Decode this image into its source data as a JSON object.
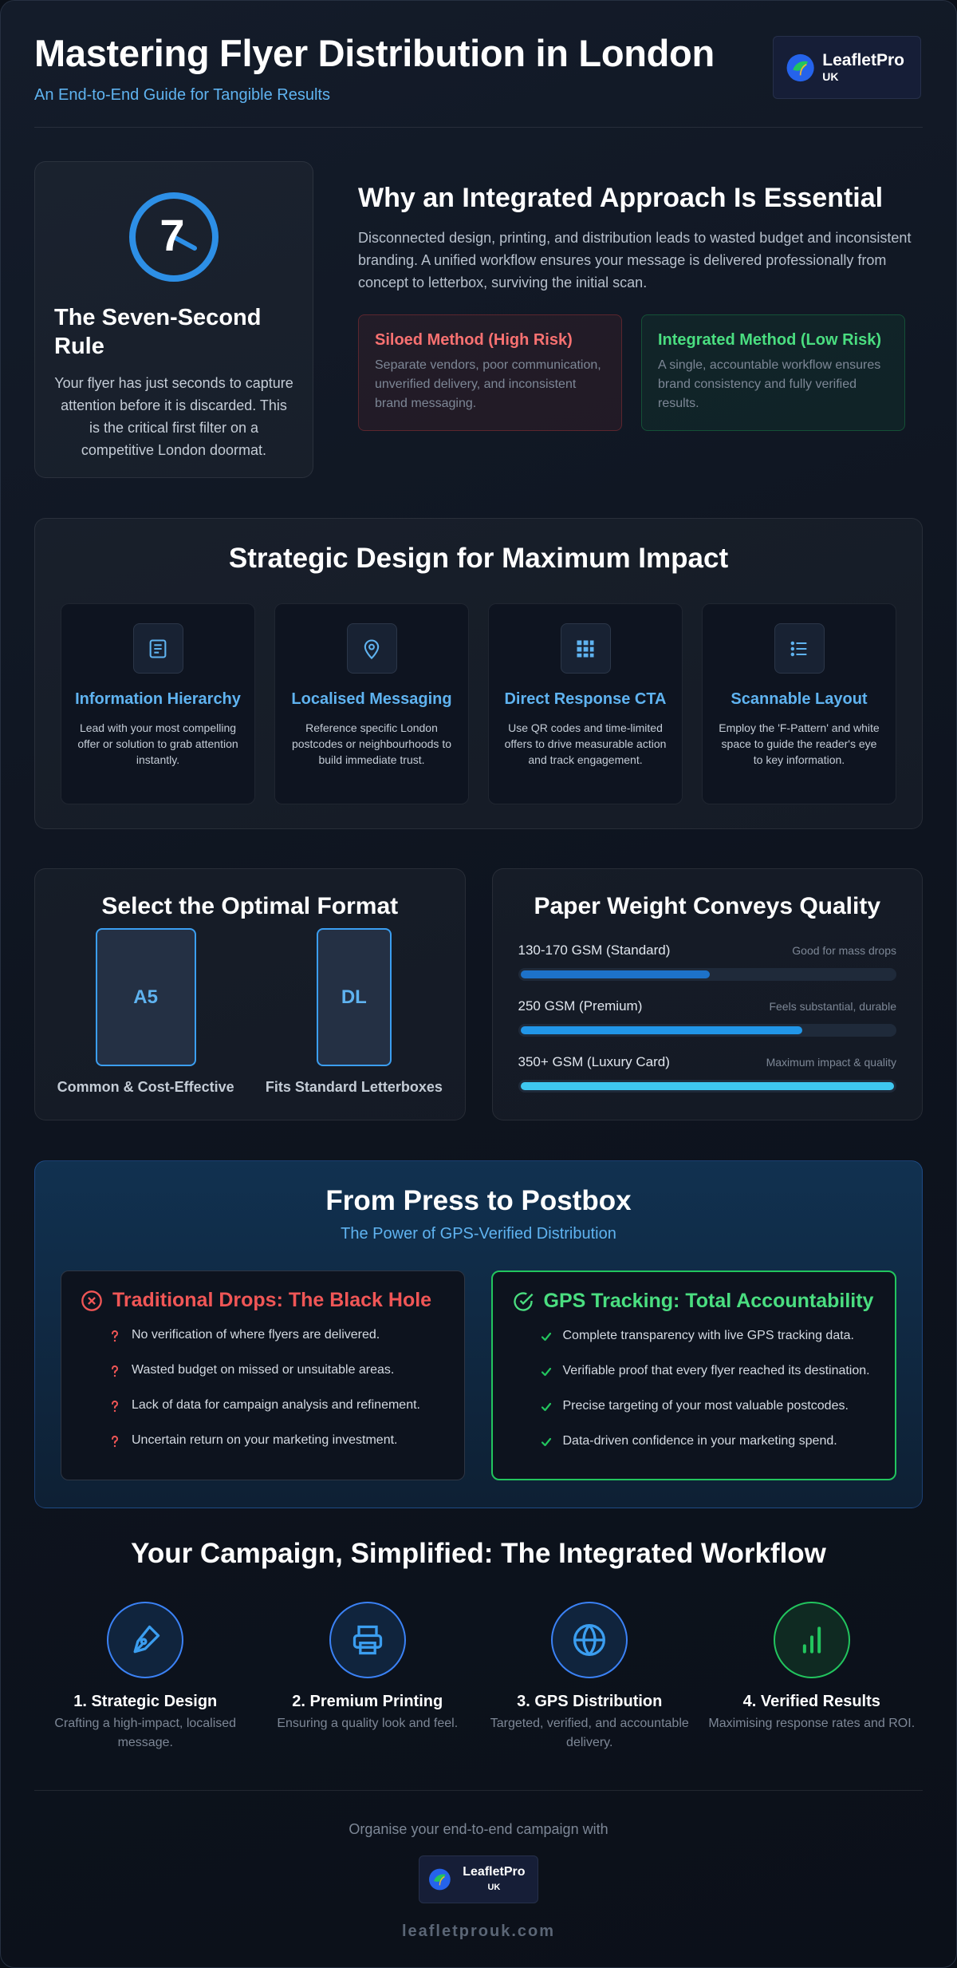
{
  "header": {
    "title": "Mastering Flyer Distribution in London",
    "subtitle": "An End-to-End Guide for Tangible Results",
    "logo": {
      "name": "LeafletPro",
      "suffix": "UK"
    }
  },
  "seven_second": {
    "number": "7",
    "title": "The Seven-Second Rule",
    "text": "Your flyer has just seconds to capture attention before it is discarded. This is the critical first filter on a competitive London doormat."
  },
  "integrated": {
    "title": "Why an Integrated Approach Is Essential",
    "text": "Disconnected design, printing, and distribution leads to wasted budget and inconsistent branding. A unified workflow ensures your message is delivered professionally from concept to letterbox, surviving the initial scan.",
    "siloed": {
      "title": "Siloed Method (High Risk)",
      "text": "Separate vendors, poor communication, unverified delivery, and inconsistent brand messaging."
    },
    "unified": {
      "title": "Integrated Method (Low Risk)",
      "text": "A single, accountable workflow ensures brand consistency and fully verified results."
    }
  },
  "design": {
    "title": "Strategic Design for Maximum Impact",
    "cards": [
      {
        "title": "Information Hierarchy",
        "text": "Lead with your most compelling offer or solution to grab attention instantly."
      },
      {
        "title": "Localised Messaging",
        "text": "Reference specific London postcodes or neighbourhoods to build immediate trust."
      },
      {
        "title": "Direct Response CTA",
        "text": "Use QR codes and time-limited offers to drive measurable action and track engagement."
      },
      {
        "title": "Scannable Layout",
        "text": "Employ the 'F-Pattern' and white space to guide the reader's eye to key information."
      }
    ]
  },
  "format": {
    "title": "Select the Optimal Format",
    "items": [
      {
        "label": "A5",
        "caption": "Common & Cost-Effective"
      },
      {
        "label": "DL",
        "caption": "Fits Standard Letterboxes"
      }
    ]
  },
  "paper": {
    "title": "Paper Weight Conveys Quality",
    "rows": [
      {
        "label": "130-170 GSM (Standard)",
        "note": "Good for mass drops"
      },
      {
        "label": "250 GSM (Premium)",
        "note": "Feels substantial, durable"
      },
      {
        "label": "350+ GSM (Luxury Card)",
        "note": "Maximum impact & quality"
      }
    ]
  },
  "press": {
    "title": "From Press to Postbox",
    "subtitle": "The Power of GPS-Verified Distribution",
    "traditional": {
      "title": "Traditional Drops: The Black Hole",
      "items": [
        "No verification of where flyers are delivered.",
        "Wasted budget on missed or unsuitable areas.",
        "Lack of data for campaign analysis and refinement.",
        "Uncertain return on your marketing investment."
      ]
    },
    "gps": {
      "title": "GPS Tracking: Total Accountability",
      "items": [
        "Complete transparency with live GPS tracking data.",
        "Verifiable proof that every flyer reached its destination.",
        "Precise targeting of your most valuable postcodes.",
        "Data-driven confidence in your marketing spend."
      ]
    }
  },
  "workflow": {
    "title": "Your Campaign, Simplified: The Integrated Workflow",
    "steps": [
      {
        "title": "1. Strategic Design",
        "text": "Crafting a high-impact, localised message."
      },
      {
        "title": "2. Premium Printing",
        "text": "Ensuring a quality look and feel."
      },
      {
        "title": "3. GPS Distribution",
        "text": "Targeted, verified, and accountable delivery."
      },
      {
        "title": "4. Verified Results",
        "text": "Maximising response rates and ROI."
      }
    ]
  },
  "footer": {
    "text": "Organise your end-to-end campaign with",
    "url": "leafletprouk.com"
  }
}
